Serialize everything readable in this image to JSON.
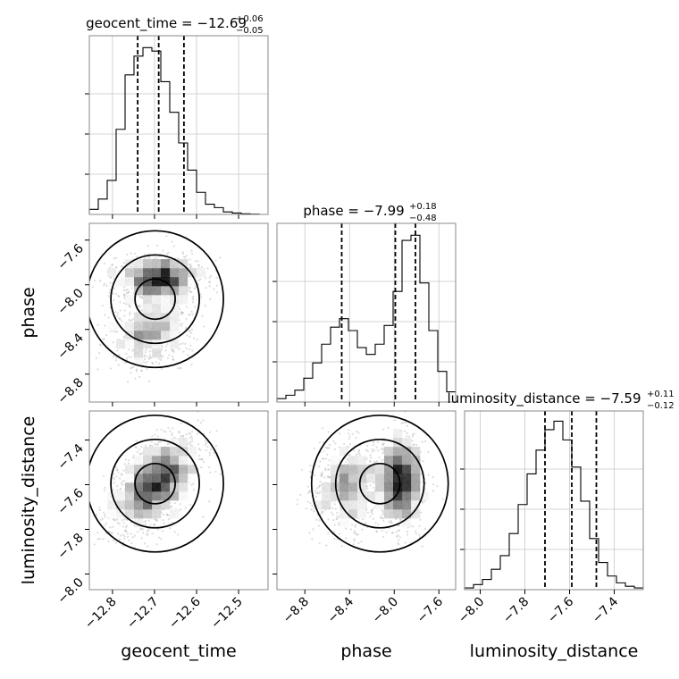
{
  "chart_data": {
    "type": "corner",
    "parameters": [
      {
        "name": "geocent_time",
        "title_prefix": "geocent_time = ",
        "title_value": "−12.69",
        "title_plus": "+0.06",
        "title_minus": "−0.05",
        "range": [
          -12.855,
          -12.43
        ],
        "ticks": [
          -12.8,
          -12.7,
          -12.6,
          -12.5
        ],
        "tick_labels": [
          "−12.8",
          "−12.7",
          "−12.6",
          "−12.5"
        ],
        "quantiles": [
          -12.74,
          -12.69,
          -12.63
        ],
        "histogram": {
          "edges_start": -12.855,
          "bin_width": 0.02125,
          "counts": [
            0.03,
            0.09,
            0.2,
            0.5,
            0.82,
            0.93,
            0.98,
            0.96,
            0.78,
            0.6,
            0.42,
            0.26,
            0.13,
            0.06,
            0.04,
            0.015,
            0.008,
            0.004,
            0.002,
            0.0
          ]
        }
      },
      {
        "name": "phase",
        "title_prefix": "phase = ",
        "title_value": "−7.99",
        "title_plus": "+0.18",
        "title_minus": "−0.48",
        "range": [
          -9.05,
          -7.45
        ],
        "ticks": [
          -8.8,
          -8.4,
          -8.0,
          -7.6
        ],
        "tick_labels": [
          "−8.8",
          "−8.4",
          "−8.0",
          "−7.6"
        ],
        "quantiles": [
          -8.47,
          -7.99,
          -7.81
        ],
        "histogram": {
          "edges_start": -9.05,
          "bin_width": 0.08,
          "counts": [
            0.02,
            0.04,
            0.07,
            0.14,
            0.23,
            0.34,
            0.44,
            0.49,
            0.42,
            0.32,
            0.28,
            0.34,
            0.45,
            0.65,
            0.95,
            0.98,
            0.7,
            0.42,
            0.18,
            0.06
          ]
        }
      },
      {
        "name": "luminosity_distance",
        "title_prefix": "luminosity_distance = ",
        "title_value": "−7.59",
        "title_plus": "+0.11",
        "title_minus": "−0.12",
        "range": [
          -8.07,
          -7.27
        ],
        "ticks": [
          -8.0,
          -7.8,
          -7.6,
          -7.4
        ],
        "tick_labels": [
          "−8.0",
          "−7.8",
          "−7.6",
          "−7.4"
        ],
        "quantiles": [
          -7.71,
          -7.59,
          -7.48
        ],
        "histogram": {
          "edges_start": -8.07,
          "bin_width": 0.04,
          "counts": [
            0.01,
            0.03,
            0.06,
            0.12,
            0.2,
            0.33,
            0.5,
            0.68,
            0.82,
            0.94,
            0.99,
            0.88,
            0.72,
            0.52,
            0.3,
            0.16,
            0.08,
            0.04,
            0.02,
            0.01
          ]
        }
      }
    ],
    "grid": true,
    "contour_levels": 3
  }
}
